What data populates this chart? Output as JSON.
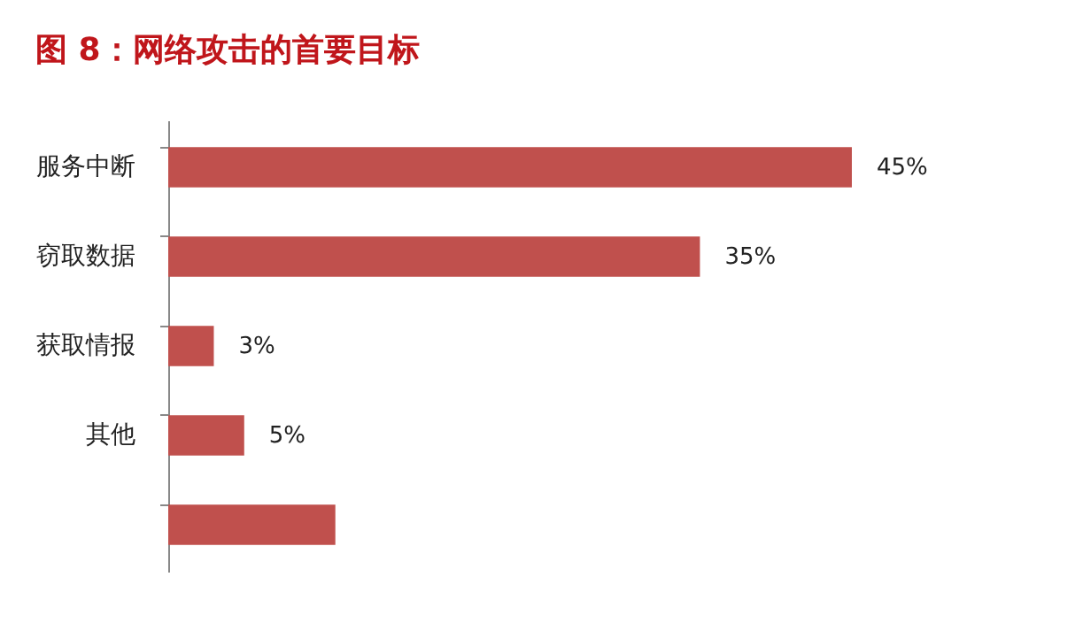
{
  "chart_data": {
    "type": "bar",
    "orientation": "horizontal",
    "title": "图 8：网络攻击的首要目标",
    "categories": [
      "服务中断",
      "窃取数据",
      "获取情报",
      "其他",
      null
    ],
    "values": [
      45,
      35,
      3,
      5,
      11
    ],
    "color": "#c0504d",
    "value_labels": [
      "45%",
      "35%",
      "3%",
      "5%",
      null
    ],
    "grid": false
  }
}
